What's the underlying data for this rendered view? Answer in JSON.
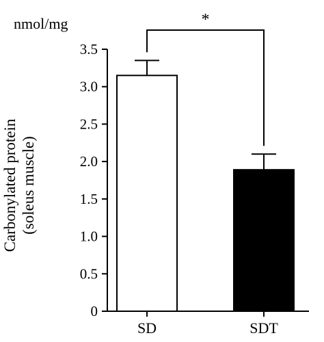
{
  "chart_data": {
    "type": "bar",
    "categories": [
      "SD",
      "SDT"
    ],
    "values": [
      3.15,
      1.89
    ],
    "errors": [
      0.2,
      0.21
    ],
    "bar_fills": [
      "#ffffff",
      "#000000"
    ],
    "bar_stroke": "#000000",
    "ylim": [
      0,
      3.5
    ],
    "yticks": [
      0,
      0.5,
      1.0,
      1.5,
      2.0,
      2.5,
      3.0,
      3.5
    ],
    "ytick_labels": [
      "0",
      "0.5",
      "1.0",
      "1.5",
      "2.0",
      "2.5",
      "3.0",
      "3.5"
    ],
    "ylabel_lines": [
      "Carbonylated protein",
      "(soleus muscle)"
    ],
    "unit_label": "nmol/mg",
    "xlabel": "",
    "title": "",
    "grid": false,
    "legend": "none",
    "significance": {
      "between": [
        "SD",
        "SDT"
      ],
      "label": "*"
    }
  }
}
